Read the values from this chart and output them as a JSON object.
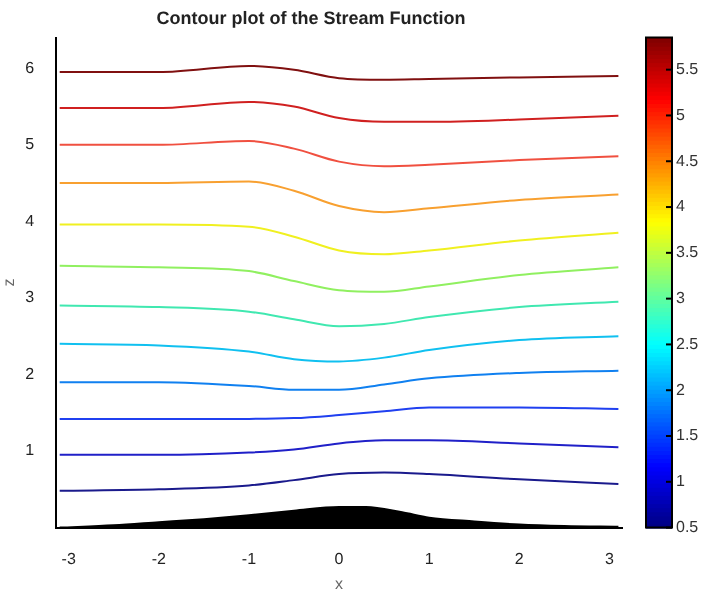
{
  "chart_data": {
    "type": "line",
    "title": "Contour plot of the Stream Function",
    "xlabel": "x",
    "ylabel": "z",
    "x": [
      -3.1,
      -2,
      -1,
      -0.5,
      0,
      0.5,
      1,
      2,
      3.1
    ],
    "xlim": [
      -3.14,
      3.14
    ],
    "xticks": [
      -3,
      -2,
      -1,
      0,
      1,
      2,
      3
    ],
    "ylim": [
      0,
      6.4
    ],
    "yticks": [
      1,
      2,
      3,
      4,
      5,
      6
    ],
    "grid": false,
    "legend": false,
    "clim": [
      0.5,
      5.85
    ],
    "cticks": [
      0.5,
      1,
      1.5,
      2,
      2.5,
      3,
      3.5,
      4,
      4.5,
      5,
      5.5
    ],
    "series": [
      {
        "color": "#000000",
        "type": "area",
        "x": [
          -3.1,
          -2.5,
          -2,
          -1.5,
          -1,
          -0.5,
          0,
          0.3,
          0.7,
          1,
          1.5,
          2,
          2.5,
          3.1
        ],
        "values": [
          0.0,
          0.03,
          0.07,
          0.11,
          0.16,
          0.22,
          0.27,
          0.27,
          0.2,
          0.13,
          0.08,
          0.04,
          0.02,
          0.01
        ]
      },
      {
        "color": "#1a1a8c",
        "values": [
          0.48,
          0.5,
          0.55,
          0.62,
          0.7,
          0.72,
          0.7,
          0.63,
          0.57
        ]
      },
      {
        "color": "#2020c8",
        "values": [
          0.95,
          0.95,
          0.98,
          1.02,
          1.1,
          1.14,
          1.14,
          1.1,
          1.05
        ]
      },
      {
        "color": "#2040f0",
        "values": [
          1.42,
          1.42,
          1.42,
          1.43,
          1.47,
          1.52,
          1.57,
          1.57,
          1.55
        ]
      },
      {
        "color": "#1080f0",
        "values": [
          1.9,
          1.9,
          1.85,
          1.8,
          1.8,
          1.87,
          1.95,
          2.02,
          2.05
        ]
      },
      {
        "color": "#10c0f0",
        "values": [
          2.4,
          2.38,
          2.3,
          2.2,
          2.17,
          2.22,
          2.32,
          2.45,
          2.5
        ]
      },
      {
        "color": "#40e8b0",
        "values": [
          2.9,
          2.88,
          2.82,
          2.72,
          2.63,
          2.66,
          2.75,
          2.88,
          2.95
        ]
      },
      {
        "color": "#90f060",
        "values": [
          3.42,
          3.4,
          3.35,
          3.22,
          3.1,
          3.08,
          3.15,
          3.3,
          3.4
        ]
      },
      {
        "color": "#f0f020",
        "values": [
          3.96,
          3.96,
          3.93,
          3.8,
          3.62,
          3.57,
          3.62,
          3.75,
          3.85
        ]
      },
      {
        "color": "#f8a030",
        "values": [
          4.5,
          4.5,
          4.52,
          4.4,
          4.2,
          4.12,
          4.17,
          4.28,
          4.35
        ]
      },
      {
        "color": "#f05040",
        "values": [
          5.0,
          5.0,
          5.05,
          4.95,
          4.78,
          4.72,
          4.74,
          4.8,
          4.85
        ]
      },
      {
        "color": "#d02020",
        "values": [
          5.48,
          5.48,
          5.56,
          5.5,
          5.35,
          5.3,
          5.3,
          5.33,
          5.38
        ]
      },
      {
        "color": "#801010",
        "values": [
          5.95,
          5.95,
          6.03,
          5.98,
          5.87,
          5.85,
          5.86,
          5.88,
          5.9
        ]
      }
    ]
  }
}
